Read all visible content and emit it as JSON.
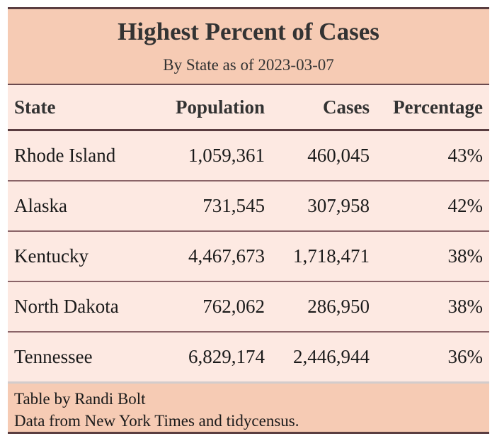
{
  "header": {
    "title": "Highest Percent of Cases",
    "subtitle": "By State as of 2023-03-07"
  },
  "table": {
    "columns": [
      "State",
      "Population",
      "Cases",
      "Percentage"
    ],
    "rows": [
      [
        "Rhode Island",
        "1,059,361",
        "460,045",
        "43%"
      ],
      [
        "Alaska",
        "731,545",
        "307,958",
        "42%"
      ],
      [
        "Kentucky",
        "4,467,673",
        "1,718,471",
        "38%"
      ],
      [
        "North Dakota",
        "762,062",
        "286,950",
        "38%"
      ],
      [
        "Tennessee",
        "6,829,174",
        "2,446,944",
        "36%"
      ]
    ]
  },
  "footer": {
    "lines": [
      "Table by Randi Bolt",
      "Data from New York Times and tidycensus."
    ]
  }
}
